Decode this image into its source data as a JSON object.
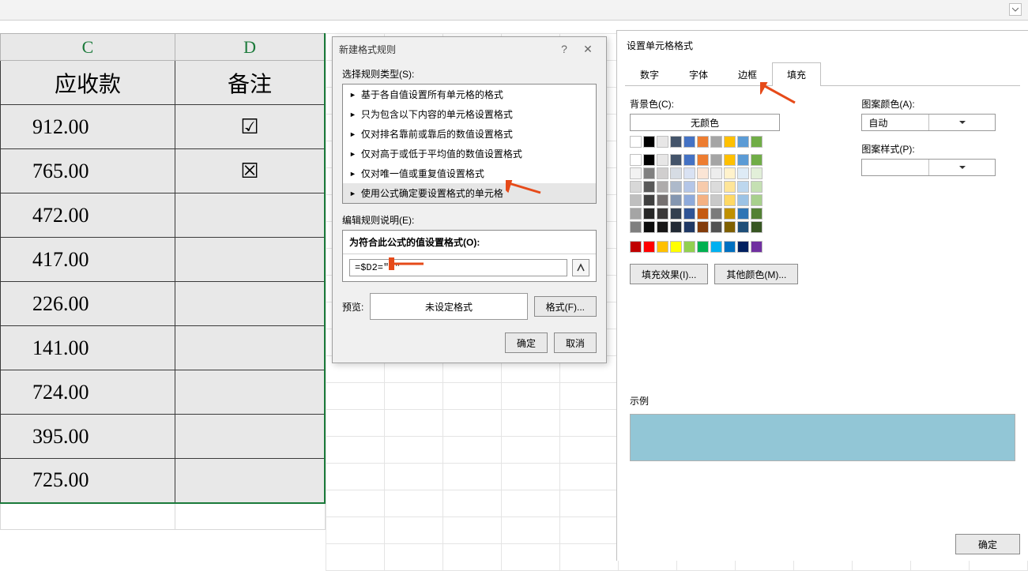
{
  "columns": {
    "c": "C",
    "d": "D"
  },
  "headers": {
    "c": "应收款",
    "d": "备注"
  },
  "rows": [
    {
      "c": "912.00",
      "d": "☑"
    },
    {
      "c": "765.00",
      "d": "☒"
    },
    {
      "c": "472.00",
      "d": ""
    },
    {
      "c": "417.00",
      "d": ""
    },
    {
      "c": "226.00",
      "d": ""
    },
    {
      "c": "141.00",
      "d": ""
    },
    {
      "c": "724.00",
      "d": ""
    },
    {
      "c": "395.00",
      "d": ""
    },
    {
      "c": "725.00",
      "d": ""
    }
  ],
  "dlg1": {
    "title": "新建格式规则",
    "select_label": "选择规则类型(S):",
    "rules": [
      "基于各自值设置所有单元格的格式",
      "只为包含以下内容的单元格设置格式",
      "仅对排名靠前或靠后的数值设置格式",
      "仅对高于或低于平均值的数值设置格式",
      "仅对唯一值或重复值设置格式",
      "使用公式确定要设置格式的单元格"
    ],
    "edit_label": "编辑规则说明(E):",
    "formula_label": "为符合此公式的值设置格式(O):",
    "formula_value": "=$D2=\"R\"",
    "preview_label": "预览:",
    "preview_text": "未设定格式",
    "format_btn": "格式(F)...",
    "ok": "确定",
    "cancel": "取消"
  },
  "dlg2": {
    "title": "设置单元格格式",
    "tabs": [
      "数字",
      "字体",
      "边框",
      "填充"
    ],
    "active_tab": 3,
    "bg_label": "背景色(C):",
    "nocolor": "无颜色",
    "pattern_color_label": "图案颜色(A):",
    "pattern_color_value": "自动",
    "pattern_style_label": "图案样式(P):",
    "fill_effects": "填充效果(I)...",
    "more_colors": "其他颜色(M)...",
    "sample_label": "示例",
    "sample_color": "#92c6d6",
    "ok": "确定"
  },
  "palette_theme_row": [
    "#ffffff",
    "#000000",
    "#e7e6e6",
    "#44546a",
    "#4472c4",
    "#ed7d31",
    "#a5a5a5",
    "#ffc000",
    "#5b9bd5",
    "#70ad47"
  ],
  "palette_tints": [
    [
      "#f2f2f2",
      "#808080",
      "#d0cece",
      "#d6dce4",
      "#d9e2f3",
      "#fbe5d5",
      "#ededed",
      "#fff2cc",
      "#deebf6",
      "#e2efd9"
    ],
    [
      "#d8d8d8",
      "#595959",
      "#aeabab",
      "#adb9ca",
      "#b4c6e7",
      "#f7cbac",
      "#dbdbdb",
      "#fee599",
      "#bdd7ee",
      "#c5e0b3"
    ],
    [
      "#bfbfbf",
      "#3f3f3f",
      "#757070",
      "#8496b0",
      "#8eaadb",
      "#f4b183",
      "#c9c9c9",
      "#ffd965",
      "#9cc3e5",
      "#a8d08d"
    ],
    [
      "#a5a5a5",
      "#262626",
      "#3a3838",
      "#323f4f",
      "#2f5496",
      "#c55a11",
      "#7b7b7b",
      "#bf9000",
      "#2e75b5",
      "#538135"
    ],
    [
      "#7f7f7f",
      "#0c0c0c",
      "#171616",
      "#222a35",
      "#1f3864",
      "#833c0b",
      "#525252",
      "#7f6000",
      "#1e4e79",
      "#375623"
    ]
  ],
  "palette_standard": [
    "#c00000",
    "#ff0000",
    "#ffc000",
    "#ffff00",
    "#92d050",
    "#00b050",
    "#00b0f0",
    "#0070c0",
    "#002060",
    "#7030a0"
  ],
  "arrow_color": "#e64a19"
}
